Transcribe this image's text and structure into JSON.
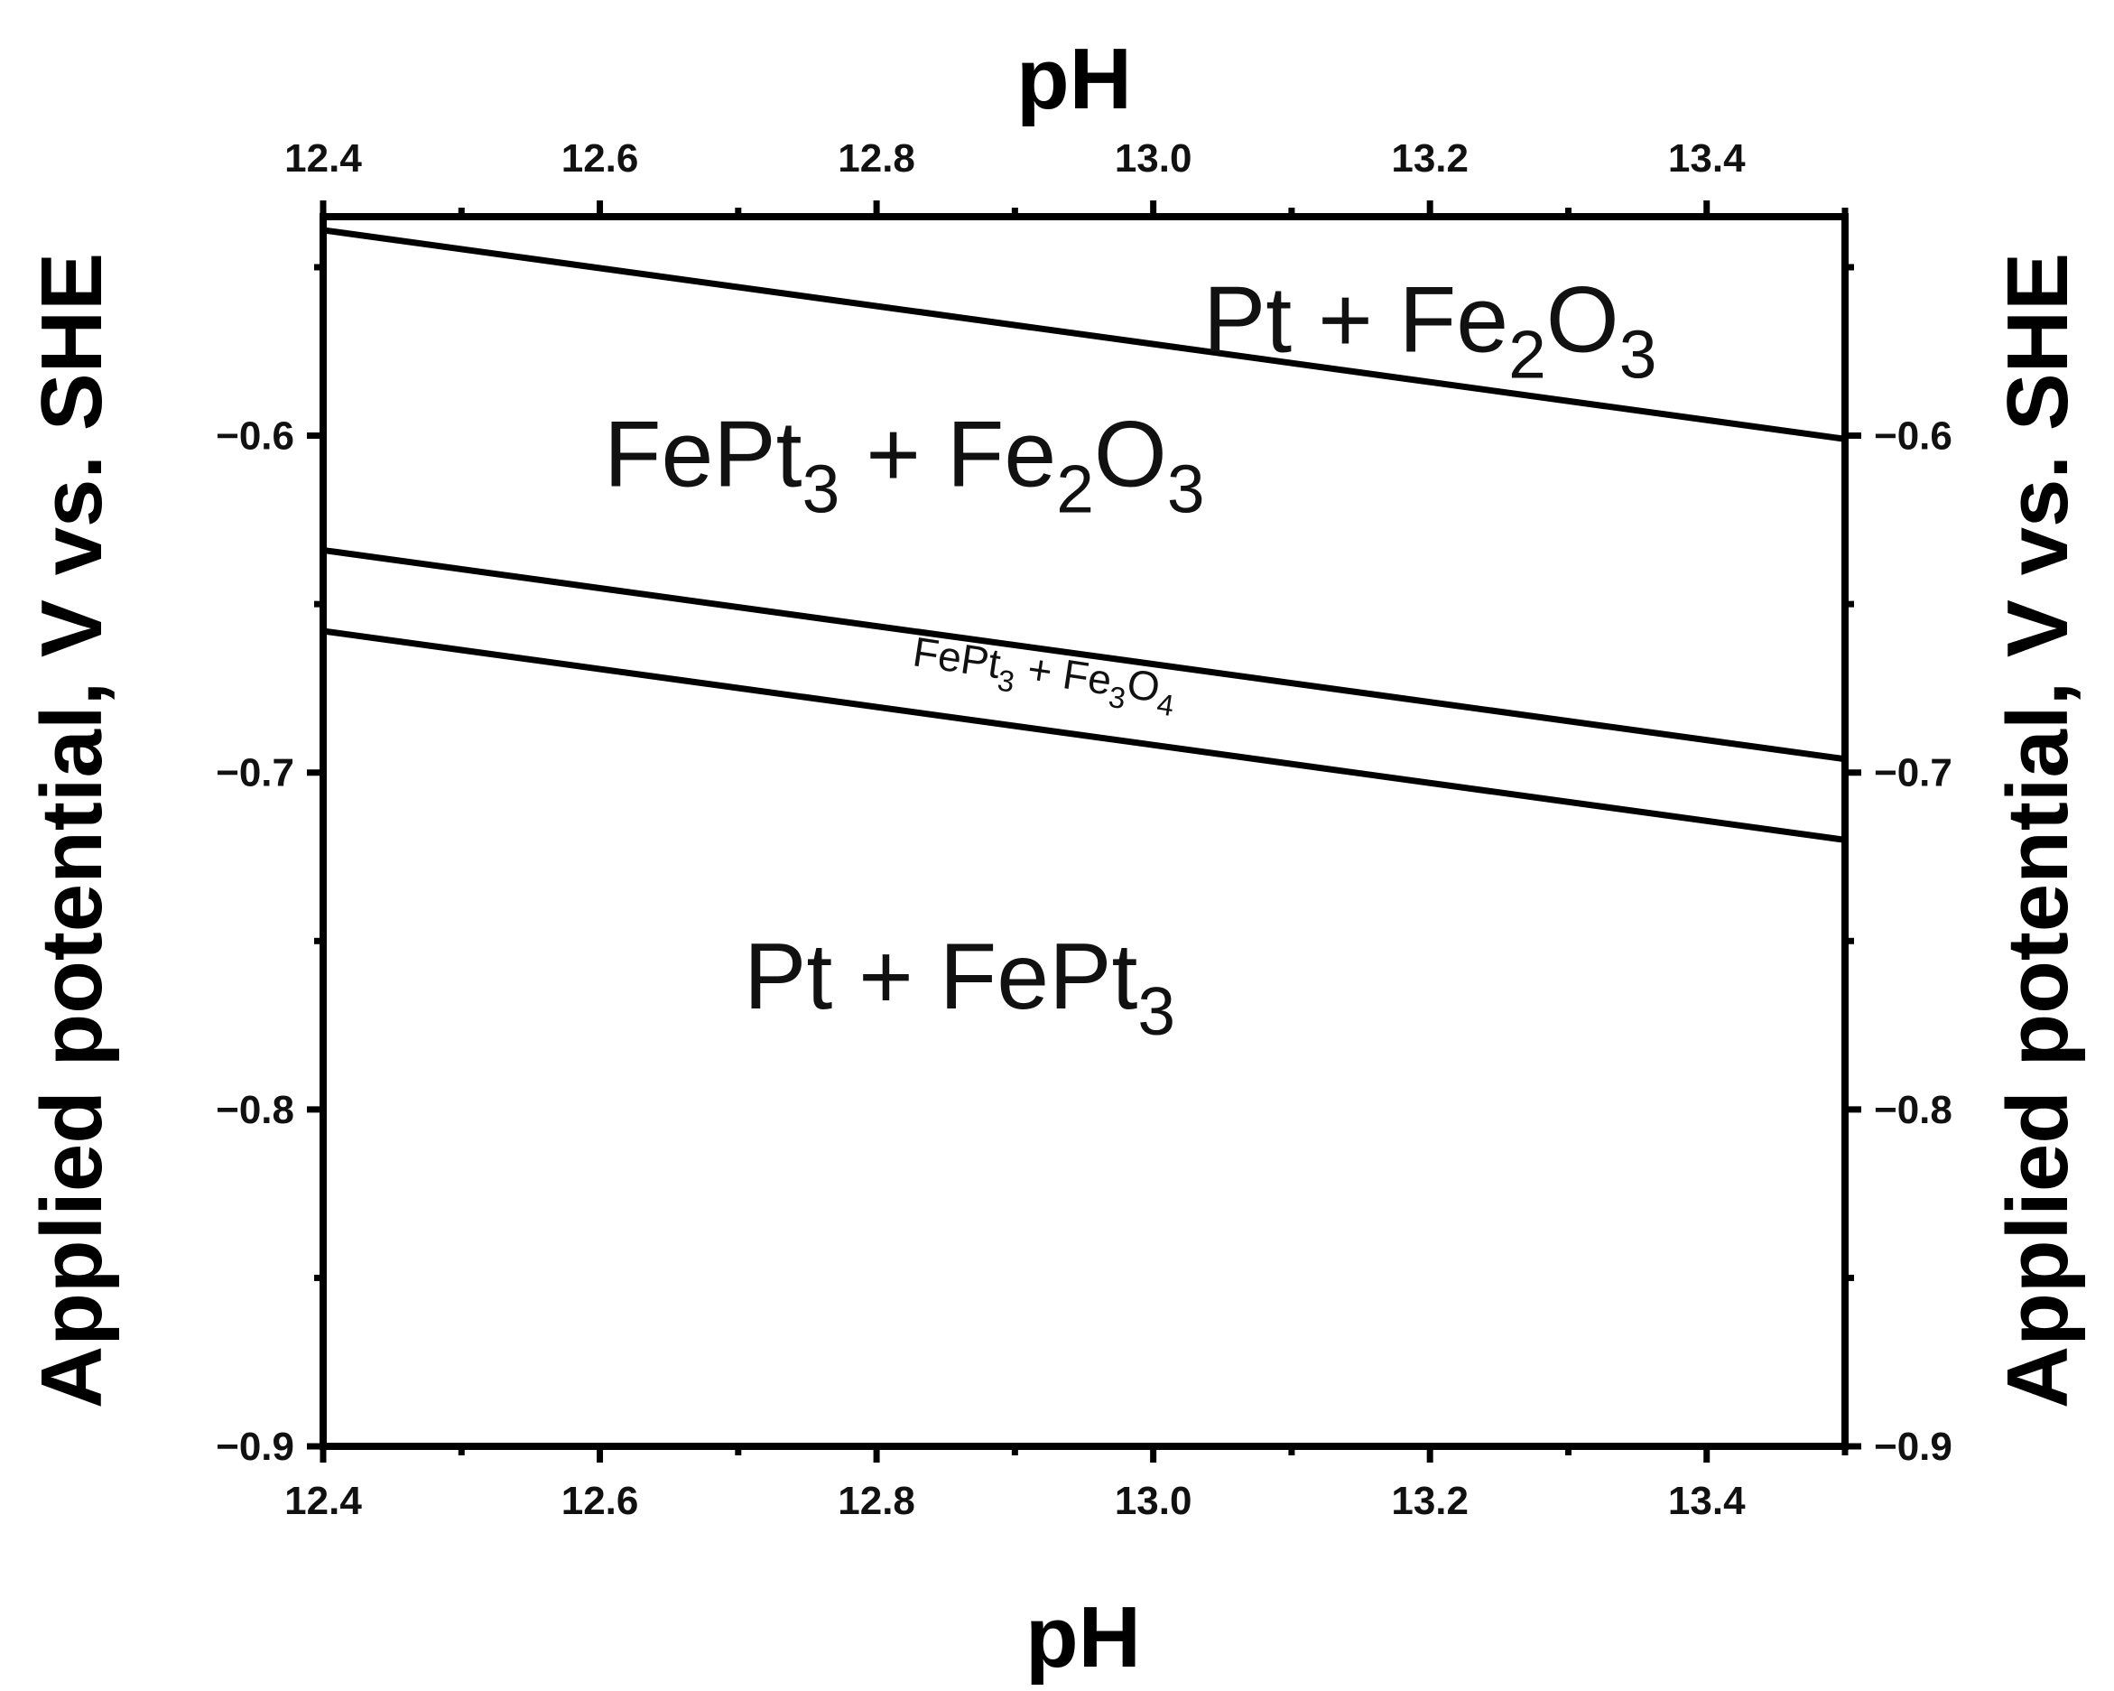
{
  "chart_data": {
    "type": "line",
    "xlabel_top": "pH",
    "xlabel_bottom": "pH",
    "ylabel_left": "Applied potential, V vs. SHE",
    "ylabel_right": "Applied potential, V vs. SHE",
    "xlim": [
      12.4,
      13.5
    ],
    "ylim": [
      -0.9,
      -0.535
    ],
    "x_ticks": [
      12.4,
      12.6,
      12.8,
      13.0,
      13.2,
      13.4
    ],
    "x_tick_labels": [
      "12.4",
      "12.6",
      "12.8",
      "13.0",
      "13.2",
      "13.4"
    ],
    "x_minor_ticks": [
      12.5,
      12.7,
      12.9,
      13.1,
      13.3,
      13.5
    ],
    "y_ticks": [
      -0.9,
      -0.8,
      -0.7,
      -0.6
    ],
    "y_tick_labels": [
      "−0.9",
      "−0.8",
      "−0.7",
      "−0.6"
    ],
    "y_minor_ticks": [
      -0.85,
      -0.75,
      -0.65,
      -0.55
    ],
    "grid": false,
    "series": [
      {
        "x": [
          12.4,
          13.5
        ],
        "y": [
          -0.539,
          -0.601
        ],
        "color": "#000000"
      },
      {
        "x": [
          12.4,
          13.5
        ],
        "y": [
          -0.634,
          -0.696
        ],
        "color": "#000000"
      },
      {
        "x": [
          12.4,
          13.5
        ],
        "y": [
          -0.658,
          -0.72
        ],
        "color": "#000000"
      }
    ],
    "regions": [
      {
        "id": "pt-fe2o3",
        "parts": [
          [
            "Pt + Fe",
            ""
          ],
          [
            "2",
            "sub"
          ],
          [
            "O",
            ""
          ],
          [
            "3",
            "sub"
          ]
        ],
        "x": 13.2,
        "y": -0.575,
        "size": "large",
        "rotate": 0
      },
      {
        "id": "fept3-fe2o3",
        "parts": [
          [
            "FePt",
            ""
          ],
          [
            "3",
            "sub"
          ],
          [
            " + Fe",
            ""
          ],
          [
            "2",
            "sub"
          ],
          [
            "O",
            ""
          ],
          [
            "3",
            "sub"
          ]
        ],
        "x": 12.82,
        "y": -0.615,
        "size": "large",
        "rotate": 0
      },
      {
        "id": "fept3-fe3o4",
        "parts": [
          [
            "FePt",
            ""
          ],
          [
            "3",
            "sub"
          ],
          [
            " + Fe",
            ""
          ],
          [
            "3",
            "sub"
          ],
          [
            "O",
            ""
          ],
          [
            "4",
            "sub"
          ]
        ],
        "x": 12.92,
        "y": -0.674,
        "size": "small",
        "rotate": 8.5
      },
      {
        "id": "pt-fept3",
        "parts": [
          [
            "Pt + FePt",
            ""
          ],
          [
            "3",
            "sub"
          ]
        ],
        "x": 12.86,
        "y": -0.77,
        "size": "large",
        "rotate": 0
      }
    ]
  }
}
